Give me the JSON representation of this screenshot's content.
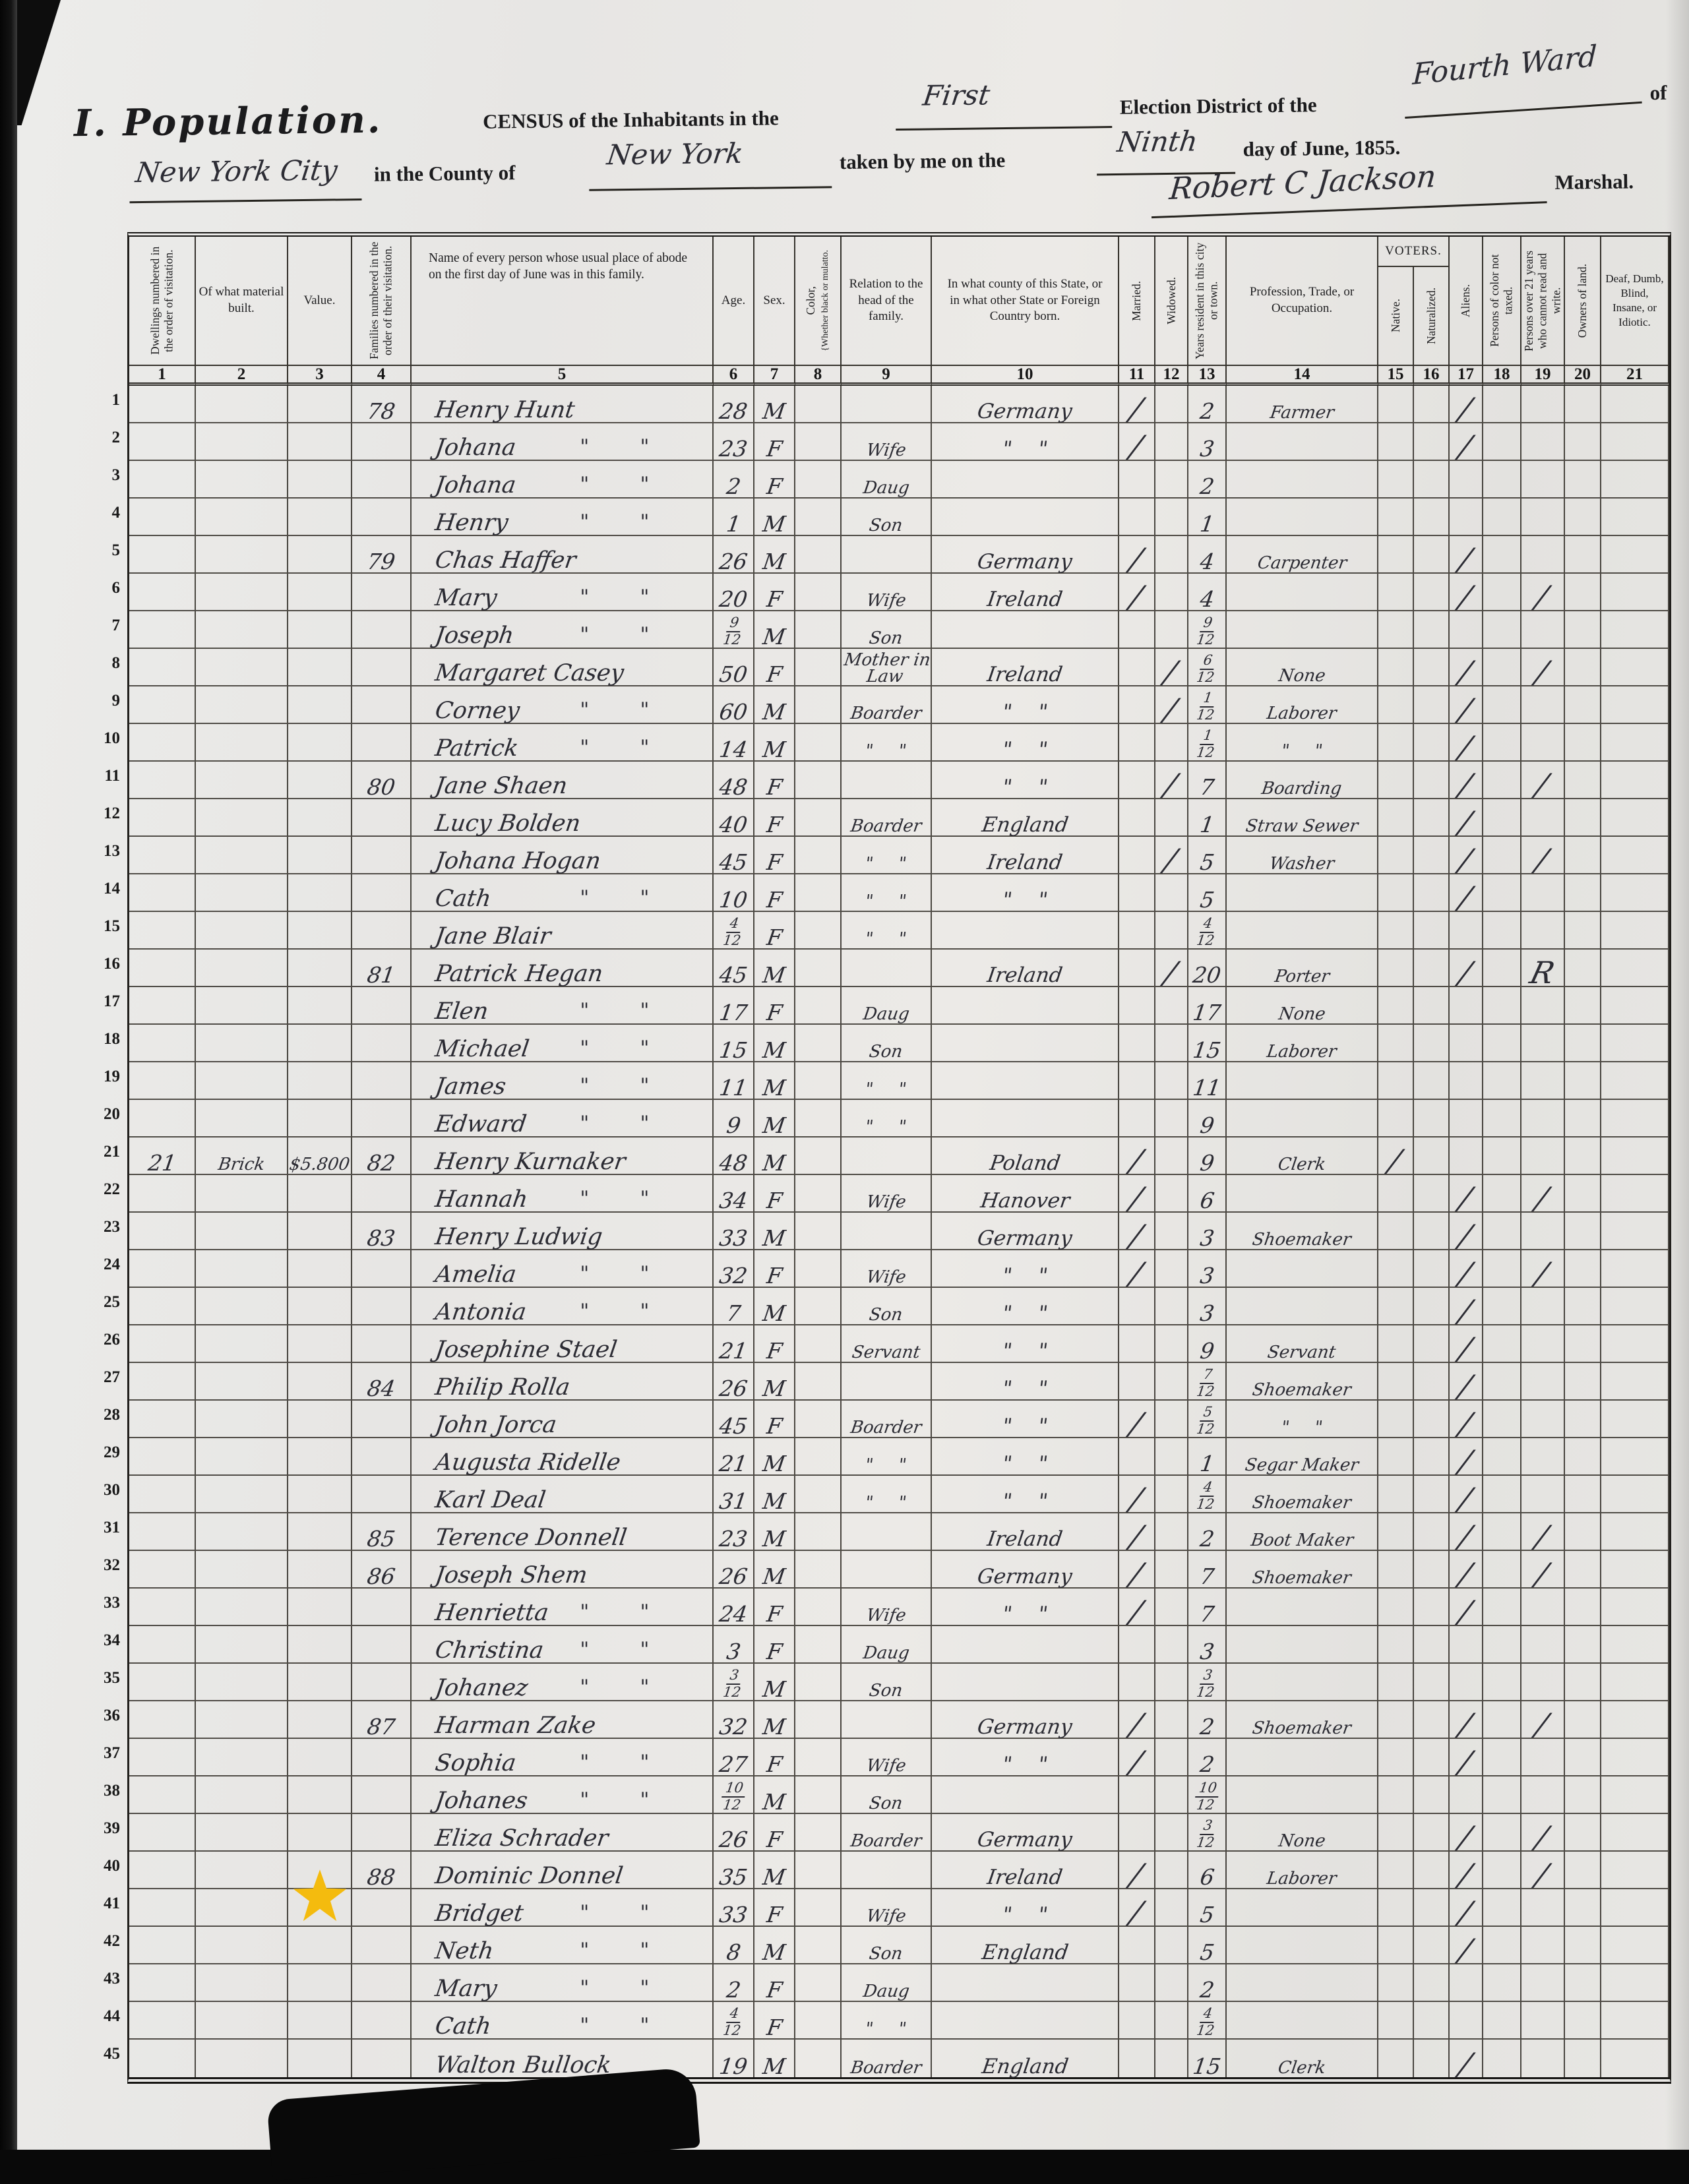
{
  "header": {
    "section_label": "I. Population.",
    "census_line": "CENSUS of the Inhabitants in the",
    "district_fill": "First",
    "district_label": "Election District of the",
    "ward_fill": "Fourth Ward",
    "of_label": "of",
    "city_fill": "New York City",
    "county_label": "in the County of",
    "county_fill": "New York",
    "taken_label": "taken by me on the",
    "day_fill": "Ninth",
    "date_label": "day of June, 1855.",
    "signature": "Robert C Jackson",
    "marshal_label": "Marshal."
  },
  "table": {
    "voters_label": "VOTERS.",
    "columns": [
      {
        "num": "1",
        "label": "Dwellings numbered in the order of visitation."
      },
      {
        "num": "2",
        "label": "Of what material built."
      },
      {
        "num": "3",
        "label": "Value."
      },
      {
        "num": "4",
        "label": "Families numbered in the order of their visitation."
      },
      {
        "num": "5",
        "label": "Name of every person whose usual place of abode on the first day of June was in this family."
      },
      {
        "num": "6",
        "label": "Age."
      },
      {
        "num": "7",
        "label": "Sex."
      },
      {
        "num": "8",
        "label": "Color,",
        "sublabel": "{Whether black or mulatto."
      },
      {
        "num": "9",
        "label": "Relation to the head of the family."
      },
      {
        "num": "10",
        "label": "In what county of this State, or in what other State or Foreign Country born."
      },
      {
        "num": "11",
        "label": "Married."
      },
      {
        "num": "12",
        "label": "Widowed."
      },
      {
        "num": "13",
        "label": "Years resident in this city or town."
      },
      {
        "num": "14",
        "label": "Profession, Trade, or Occupation."
      },
      {
        "num": "15",
        "label": "Native."
      },
      {
        "num": "16",
        "label": "Naturalized."
      },
      {
        "num": "17",
        "label": "Aliens."
      },
      {
        "num": "18",
        "label": "Persons of color not taxed."
      },
      {
        "num": "19",
        "label": "Persons over 21 years who cannot read and write."
      },
      {
        "num": "20",
        "label": "Owners of land."
      },
      {
        "num": "21",
        "label": "Deaf, Dumb, Blind, Insane, or Idiotic."
      }
    ]
  },
  "rows": [
    {
      "n": "1",
      "family": "78",
      "name": "Henry Hunt",
      "age": "28",
      "sex": "M",
      "born": "Germany",
      "married": "1",
      "years": "2",
      "occupation": "Farmer",
      "alien": "1"
    },
    {
      "n": "2",
      "name": "Johana",
      "name_ditto": true,
      "age": "23",
      "sex": "F",
      "relation": "Wife",
      "born": "\" \"",
      "married": "1",
      "years": "3",
      "alien": "1"
    },
    {
      "n": "3",
      "name": "Johana",
      "name_ditto": true,
      "age": "2",
      "sex": "F",
      "relation": "Daug",
      "years": "2"
    },
    {
      "n": "4",
      "name": "Henry",
      "name_ditto": true,
      "age": "1",
      "sex": "M",
      "relation": "Son",
      "years": "1"
    },
    {
      "n": "5",
      "family": "79",
      "name": "Chas Haffer",
      "age": "26",
      "sex": "M",
      "born": "Germany",
      "married": "1",
      "years": "4",
      "occupation": "Carpenter",
      "alien": "1"
    },
    {
      "n": "6",
      "name": "Mary",
      "name_ditto": true,
      "age": "20",
      "sex": "F",
      "relation": "Wife",
      "born": "Ireland",
      "married": "1",
      "years": "4",
      "alien": "1",
      "cannot_read": "1"
    },
    {
      "n": "7",
      "name": "Joseph",
      "name_ditto": true,
      "age": "9/12",
      "sex": "M",
      "relation": "Son",
      "years": "9/12"
    },
    {
      "n": "8",
      "name": "Margaret Casey",
      "age": "50",
      "sex": "F",
      "relation": "Mother in Law",
      "born": "Ireland",
      "widowed": "1",
      "years": "6/12",
      "occupation": "None",
      "alien": "1",
      "cannot_read": "1"
    },
    {
      "n": "9",
      "name": "Corney",
      "name_ditto": true,
      "age": "60",
      "sex": "M",
      "relation": "Boarder",
      "born": "\" \"",
      "widowed": "1",
      "years": "1/12",
      "occupation": "Laborer",
      "alien": "1"
    },
    {
      "n": "10",
      "name": "Patrick",
      "name_ditto": true,
      "age": "14",
      "sex": "M",
      "relation": "\" \"",
      "born": "\" \"",
      "years": "1/12",
      "occupation": "\" \"",
      "alien": "1"
    },
    {
      "n": "11",
      "family": "80",
      "name": "Jane Shaen",
      "age": "48",
      "sex": "F",
      "born": "\" \"",
      "widowed": "1",
      "years": "7",
      "occupation": "Boarding",
      "alien": "1",
      "cannot_read": "1"
    },
    {
      "n": "12",
      "name": "Lucy Bolden",
      "age": "40",
      "sex": "F",
      "relation": "Boarder",
      "born": "England",
      "years": "1",
      "occupation": "Straw Sewer",
      "alien": "1"
    },
    {
      "n": "13",
      "name": "Johana Hogan",
      "age": "45",
      "sex": "F",
      "relation": "\" \"",
      "born": "Ireland",
      "widowed": "1",
      "years": "5",
      "occupation": "Washer",
      "alien": "1",
      "cannot_read": "1"
    },
    {
      "n": "14",
      "name": "Cath",
      "name_ditto": true,
      "age": "10",
      "sex": "F",
      "relation": "\" \"",
      "born": "\" \"",
      "years": "5",
      "alien": "1"
    },
    {
      "n": "15",
      "name": "Jane Blair",
      "age": "4/12",
      "sex": "F",
      "relation": "\" \"",
      "years": "4/12"
    },
    {
      "n": "16",
      "family": "81",
      "name": "Patrick Hegan",
      "age": "45",
      "sex": "M",
      "born": "Ireland",
      "widowed": "1",
      "years": "20",
      "occupation": "Porter",
      "alien": "1",
      "cannot_read": "R"
    },
    {
      "n": "17",
      "name": "Elen",
      "name_ditto": true,
      "age": "17",
      "sex": "F",
      "relation": "Daug",
      "years": "17",
      "occupation": "None"
    },
    {
      "n": "18",
      "name": "Michael",
      "name_ditto": true,
      "age": "15",
      "sex": "M",
      "relation": "Son",
      "years": "15",
      "occupation": "Laborer"
    },
    {
      "n": "19",
      "name": "James",
      "name_ditto": true,
      "age": "11",
      "sex": "M",
      "relation": "\" \"",
      "years": "11"
    },
    {
      "n": "20",
      "name": "Edward",
      "name_ditto": true,
      "age": "9",
      "sex": "M",
      "relation": "\" \"",
      "years": "9"
    },
    {
      "n": "21",
      "dwelling": "21",
      "material": "Brick",
      "value": "$5.800",
      "family": "82",
      "name": "Henry Kurnaker",
      "age": "48",
      "sex": "M",
      "born": "Poland",
      "married": "1",
      "years": "9",
      "occupation": "Clerk",
      "native": "1"
    },
    {
      "n": "22",
      "name": "Hannah",
      "name_ditto": true,
      "age": "34",
      "sex": "F",
      "relation": "Wife",
      "born": "Hanover",
      "married": "1",
      "years": "6",
      "alien": "1",
      "cannot_read": "1"
    },
    {
      "n": "23",
      "family": "83",
      "name": "Henry Ludwig",
      "age": "33",
      "sex": "M",
      "born": "Germany",
      "married": "1",
      "years": "3",
      "occupation": "Shoemaker",
      "alien": "1"
    },
    {
      "n": "24",
      "name": "Amelia",
      "name_ditto": true,
      "age": "32",
      "sex": "F",
      "relation": "Wife",
      "born": "\" \"",
      "married": "1",
      "years": "3",
      "alien": "1",
      "cannot_read": "1"
    },
    {
      "n": "25",
      "name": "Antonia",
      "name_ditto": true,
      "age": "7",
      "sex": "M",
      "relation": "Son",
      "born": "\" \"",
      "years": "3",
      "alien": "1"
    },
    {
      "n": "26",
      "name": "Josephine Stael",
      "age": "21",
      "sex": "F",
      "relation": "Servant",
      "born": "\" \"",
      "years": "9",
      "occupation": "Servant",
      "alien": "1"
    },
    {
      "n": "27",
      "family": "84",
      "name": "Philip Rolla",
      "age": "26",
      "sex": "M",
      "born": "\" \"",
      "years": "7/12",
      "occupation": "Shoemaker",
      "alien": "1"
    },
    {
      "n": "28",
      "name": "John Jorca",
      "age": "45",
      "sex": "F",
      "relation": "Boarder",
      "born": "\" \"",
      "married": "1",
      "years": "5/12",
      "occupation": "\" \"",
      "alien": "1"
    },
    {
      "n": "29",
      "name": "Augusta Ridelle",
      "age": "21",
      "sex": "M",
      "relation": "\" \"",
      "born": "\" \"",
      "years": "1",
      "occupation": "Segar Maker",
      "alien": "1"
    },
    {
      "n": "30",
      "name": "Karl Deal",
      "age": "31",
      "sex": "M",
      "relation": "\" \"",
      "born": "\" \"",
      "married": "1",
      "years": "4/12",
      "occupation": "Shoemaker",
      "alien": "1"
    },
    {
      "n": "31",
      "family": "85",
      "name": "Terence Donnell",
      "age": "23",
      "sex": "M",
      "born": "Ireland",
      "married": "1",
      "years": "2",
      "occupation": "Boot Maker",
      "alien": "1",
      "cannot_read": "1"
    },
    {
      "n": "32",
      "family": "86",
      "name": "Joseph Shem",
      "age": "26",
      "sex": "M",
      "born": "Germany",
      "married": "1",
      "years": "7",
      "occupation": "Shoemaker",
      "alien": "1",
      "cannot_read": "1"
    },
    {
      "n": "33",
      "name": "Henrietta",
      "name_ditto": true,
      "age": "24",
      "sex": "F",
      "relation": "Wife",
      "born": "\" \"",
      "married": "1",
      "years": "7",
      "alien": "1"
    },
    {
      "n": "34",
      "name": "Christina",
      "name_ditto": true,
      "age": "3",
      "sex": "F",
      "relation": "Daug",
      "years": "3"
    },
    {
      "n": "35",
      "name": "Johanez",
      "name_ditto": true,
      "age": "3/12",
      "sex": "M",
      "relation": "Son",
      "years": "3/12"
    },
    {
      "n": "36",
      "family": "87",
      "name": "Harman Zake",
      "age": "32",
      "sex": "M",
      "born": "Germany",
      "married": "1",
      "years": "2",
      "occupation": "Shoemaker",
      "alien": "1",
      "cannot_read": "1"
    },
    {
      "n": "37",
      "name": "Sophia",
      "name_ditto": true,
      "age": "27",
      "sex": "F",
      "relation": "Wife",
      "born": "\" \"",
      "married": "1",
      "years": "2",
      "alien": "1"
    },
    {
      "n": "38",
      "name": "Johanes",
      "name_ditto": true,
      "age": "10/12",
      "sex": "M",
      "relation": "Son",
      "years": "10/12"
    },
    {
      "n": "39",
      "name": "Eliza Schrader",
      "age": "26",
      "sex": "F",
      "relation": "Boarder",
      "born": "Germany",
      "years": "3/12",
      "occupation": "None",
      "alien": "1",
      "cannot_read": "1"
    },
    {
      "n": "40",
      "family": "88",
      "name": "Dominic Donnel",
      "age": "35",
      "sex": "M",
      "born": "Ireland",
      "married": "1",
      "years": "6",
      "occupation": "Laborer",
      "alien": "1",
      "cannot_read": "1"
    },
    {
      "n": "41",
      "starred": true,
      "name": "Bridget",
      "name_ditto": true,
      "age": "33",
      "sex": "F",
      "relation": "Wife",
      "born": "\" \"",
      "married": "1",
      "years": "5",
      "alien": "1"
    },
    {
      "n": "42",
      "name": "Neth",
      "name_ditto": true,
      "age": "8",
      "sex": "M",
      "relation": "Son",
      "born": "England",
      "years": "5",
      "alien": "1"
    },
    {
      "n": "43",
      "name": "Mary",
      "name_ditto": true,
      "age": "2",
      "sex": "F",
      "relation": "Daug",
      "years": "2"
    },
    {
      "n": "44",
      "name": "Cath",
      "name_ditto": true,
      "age": "4/12",
      "sex": "F",
      "relation": "\" \"",
      "years": "4/12"
    },
    {
      "n": "45",
      "name": "Walton Bullock",
      "age": "19",
      "sex": "M",
      "relation": "Boarder",
      "born": "England",
      "years": "15",
      "occupation": "Clerk",
      "alien": "1"
    }
  ],
  "annotations": {
    "star_marked_row": "41",
    "star_color": "#F4BB0E"
  },
  "colors": {
    "paper": "#e9e8e5",
    "ink": "#1b1b1d",
    "handwriting": "#2d2d35",
    "line": "#35322c"
  }
}
